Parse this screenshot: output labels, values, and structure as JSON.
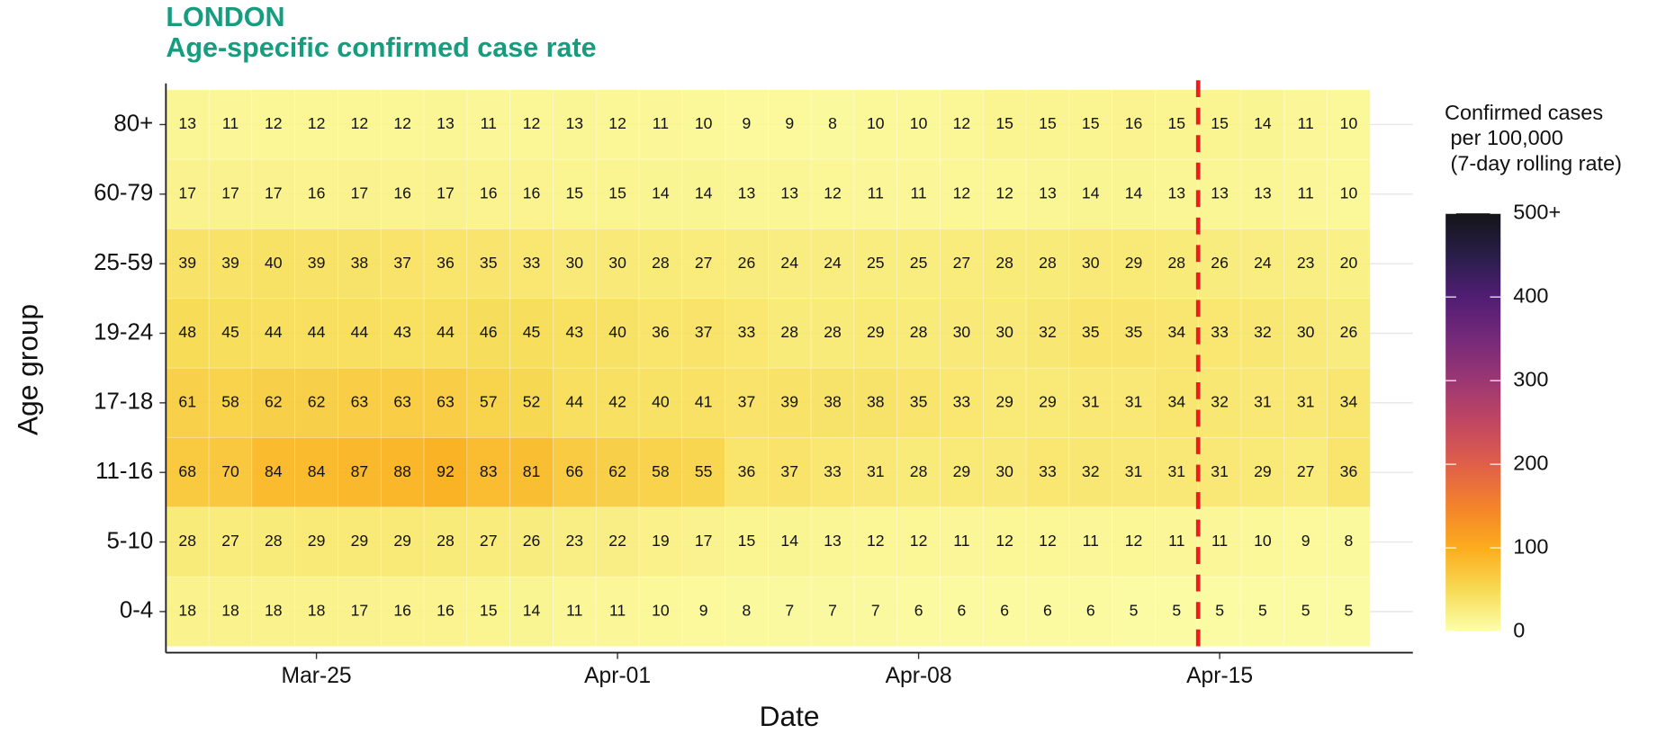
{
  "chart_data": {
    "type": "heatmap",
    "title": "LONDON",
    "subtitle": "Age-specific confirmed case rate",
    "x_label": "Date",
    "y_label": "Age group",
    "categories": [
      null,
      null,
      null,
      "Mar-25",
      null,
      null,
      null,
      null,
      null,
      null,
      "Apr-01",
      null,
      null,
      null,
      null,
      null,
      null,
      "Apr-08",
      null,
      null,
      null,
      null,
      null,
      null,
      "Apr-15",
      null,
      null,
      null
    ],
    "y_categories": [
      "80+",
      "60-79",
      "25-59",
      "19-24",
      "17-18",
      "11-16",
      "5-10",
      "0-4"
    ],
    "values": [
      [
        13,
        11,
        12,
        12,
        12,
        12,
        13,
        11,
        12,
        13,
        12,
        11,
        10,
        9,
        9,
        8,
        10,
        10,
        12,
        15,
        15,
        15,
        16,
        15,
        15,
        14,
        11,
        10
      ],
      [
        17,
        17,
        17,
        16,
        17,
        16,
        17,
        16,
        16,
        15,
        15,
        14,
        14,
        13,
        13,
        12,
        11,
        11,
        12,
        12,
        13,
        14,
        14,
        13,
        13,
        13,
        11,
        10
      ],
      [
        39,
        39,
        40,
        39,
        38,
        37,
        36,
        35,
        33,
        30,
        30,
        28,
        27,
        26,
        24,
        24,
        25,
        25,
        27,
        28,
        28,
        30,
        29,
        28,
        26,
        24,
        23,
        20
      ],
      [
        48,
        45,
        44,
        44,
        44,
        43,
        44,
        46,
        45,
        43,
        40,
        36,
        37,
        33,
        28,
        28,
        29,
        28,
        30,
        30,
        32,
        35,
        35,
        34,
        33,
        32,
        30,
        26
      ],
      [
        61,
        58,
        62,
        62,
        63,
        63,
        63,
        57,
        52,
        44,
        42,
        40,
        41,
        37,
        39,
        38,
        38,
        35,
        33,
        29,
        29,
        31,
        31,
        34,
        32,
        31,
        31,
        34
      ],
      [
        68,
        70,
        84,
        84,
        87,
        88,
        92,
        83,
        81,
        66,
        62,
        58,
        55,
        36,
        37,
        33,
        31,
        28,
        29,
        30,
        33,
        32,
        31,
        31,
        31,
        29,
        27,
        36
      ],
      [
        28,
        27,
        28,
        29,
        29,
        29,
        28,
        27,
        26,
        23,
        22,
        19,
        17,
        15,
        14,
        13,
        12,
        12,
        11,
        12,
        12,
        11,
        12,
        11,
        11,
        10,
        9,
        8
      ],
      [
        18,
        18,
        18,
        18,
        17,
        16,
        16,
        15,
        14,
        11,
        11,
        10,
        9,
        8,
        7,
        7,
        7,
        6,
        6,
        6,
        6,
        6,
        5,
        5,
        5,
        5,
        5,
        5
      ]
    ],
    "legend_title": [
      "Confirmed cases",
      " per 100,000",
      " (7-day rolling rate)"
    ],
    "clim": [
      0,
      500
    ],
    "cticks": [
      0,
      100,
      200,
      300,
      400,
      {
        "value": 500,
        "label": "500+"
      }
    ],
    "colors": [
      "#fcffa4",
      "#f6d746",
      "#fca50a",
      "#f37819",
      "#dd513a",
      "#bc3754",
      "#932667",
      "#6a176e",
      "#420a68",
      "#160b39",
      "#000004"
    ],
    "grid": true,
    "reference_line": {
      "x": 23.5,
      "color": "#ee1c1c",
      "dash": true
    }
  }
}
